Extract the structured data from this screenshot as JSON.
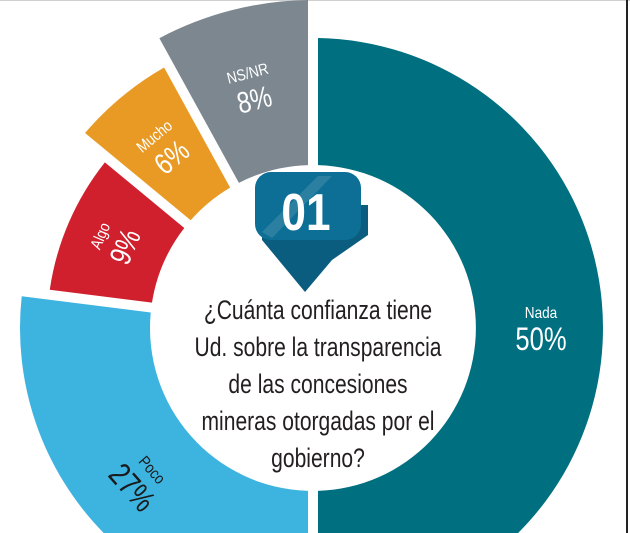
{
  "chart_data": {
    "type": "pie",
    "donut": true,
    "question_number": "01",
    "title_lines": [
      "¿Cuánta confianza tiene",
      "Ud. sobre la transparencia",
      "de las concesiones",
      "mineras otorgadas por el",
      "gobierno?"
    ],
    "slices": [
      {
        "label": "Nada",
        "value": 50,
        "value_label": "50%",
        "color": "#006f80",
        "text_color": "#ffffff"
      },
      {
        "label": "Poco",
        "value": 27,
        "value_label": "27%",
        "color": "#3db3e0",
        "text_color": "#1a1a1a"
      },
      {
        "label": "Algo",
        "value": 9,
        "value_label": "9%",
        "color": "#d0202e",
        "text_color": "#ffffff"
      },
      {
        "label": "Mucho",
        "value": 6,
        "value_label": "6%",
        "color": "#e99a25",
        "text_color": "#ffffff"
      },
      {
        "label": "NS/NR",
        "value": 8,
        "value_label": "8%",
        "color": "#7c8790",
        "text_color": "#ffffff"
      }
    ],
    "badge_color": "#0e6f96"
  }
}
